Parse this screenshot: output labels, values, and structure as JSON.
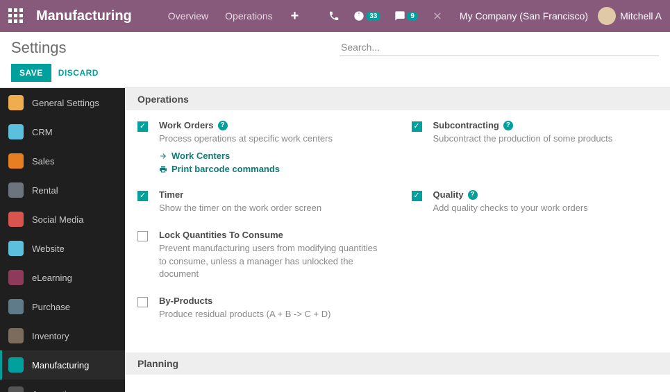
{
  "nav": {
    "brand": "Manufacturing",
    "links": [
      "Overview",
      "Operations"
    ],
    "activity_badge": "33",
    "chat_badge": "9",
    "company": "My Company (San Francisco)",
    "user": "Mitchell A"
  },
  "cp": {
    "title": "Settings",
    "save": "SAVE",
    "discard": "DISCARD",
    "search_placeholder": "Search..."
  },
  "sidebar": [
    {
      "label": "General Settings",
      "bg": "#f0ad4e"
    },
    {
      "label": "CRM",
      "bg": "#5bc0de"
    },
    {
      "label": "Sales",
      "bg": "#e67e22"
    },
    {
      "label": "Rental",
      "bg": "#6c757d"
    },
    {
      "label": "Social Media",
      "bg": "#d9534f"
    },
    {
      "label": "Website",
      "bg": "#5bc0de"
    },
    {
      "label": "eLearning",
      "bg": "#8e3a5a"
    },
    {
      "label": "Purchase",
      "bg": "#5f7b8a"
    },
    {
      "label": "Inventory",
      "bg": "#7b6c5c"
    },
    {
      "label": "Manufacturing",
      "bg": "#00a09d",
      "active": true
    },
    {
      "label": "Accounting",
      "bg": "#555"
    }
  ],
  "sections": {
    "operations": {
      "heading": "Operations",
      "work_orders": {
        "checked": true,
        "title": "Work Orders",
        "help": true,
        "desc": "Process operations at specific work centers",
        "link1": "Work Centers",
        "link2": "Print barcode commands"
      },
      "subcontracting": {
        "checked": true,
        "title": "Subcontracting",
        "help": true,
        "desc": "Subcontract the production of some products"
      },
      "timer": {
        "checked": true,
        "title": "Timer",
        "desc": "Show the timer on the work order screen"
      },
      "quality": {
        "checked": true,
        "title": "Quality",
        "help": true,
        "desc": "Add quality checks to your work orders"
      },
      "lock_qty": {
        "checked": false,
        "title": "Lock Quantities To Consume",
        "desc": "Prevent manufacturing users from modifying quantities to consume, unless a manager has unlocked the document"
      },
      "byproducts": {
        "checked": false,
        "title": "By-Products",
        "desc": "Produce residual products (A + B -> C + D)"
      }
    },
    "planning": {
      "heading": "Planning"
    }
  }
}
